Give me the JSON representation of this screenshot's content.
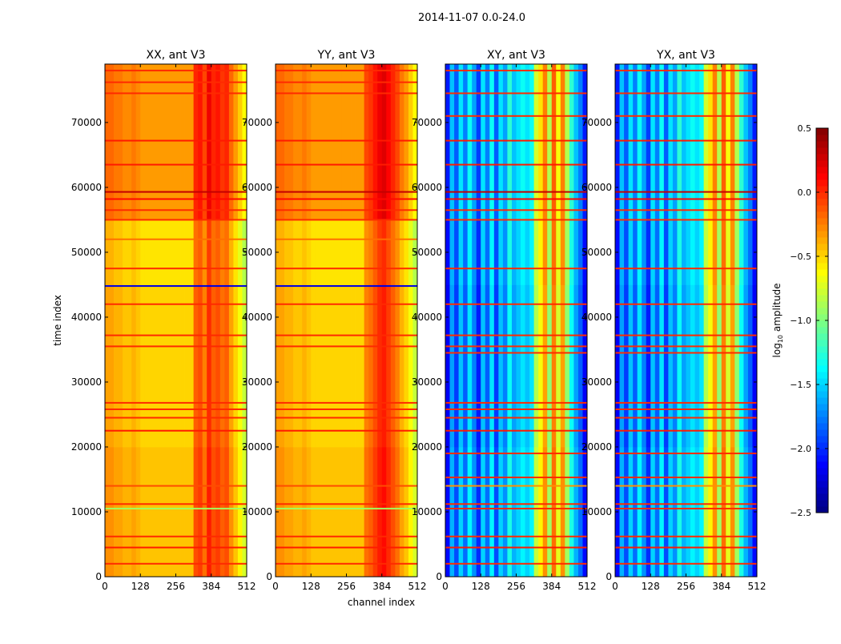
{
  "chart_data": {
    "type": "heatmap",
    "title": "2014-11-07 0.0-24.0",
    "xlabel": "channel index",
    "ylabel": "time index",
    "xlim": [
      0,
      512
    ],
    "ylim": [
      0,
      79000
    ],
    "xticks": [
      "0",
      "128",
      "256",
      "384",
      "512"
    ],
    "yticks": [
      "0",
      "10000",
      "20000",
      "30000",
      "40000",
      "50000",
      "60000",
      "70000"
    ],
    "ytick_values": [
      0,
      10000,
      20000,
      30000,
      40000,
      50000,
      60000,
      70000
    ],
    "colormap": "jet",
    "colorbar": {
      "label_main": "log",
      "label_sub": "10",
      "label_rest": " amplitude",
      "range": [
        -2.5,
        0.5
      ],
      "ticks": [
        "0.5",
        "0.0",
        "−0.5",
        "−1.0",
        "−1.5",
        "−2.0",
        "−2.5"
      ],
      "tick_values": [
        0.5,
        0.0,
        -0.5,
        -1.0,
        -1.5,
        -2.0,
        -2.5
      ]
    },
    "panels": [
      {
        "title": "XX, ant V3",
        "channel_profile": [
          -0.3,
          -0.3,
          -0.35,
          -0.35,
          -0.4,
          -0.4,
          -0.35,
          -0.4,
          -0.45,
          -0.45,
          -0.45,
          -0.45,
          -0.45,
          -0.45,
          -0.45,
          -0.45,
          -0.45,
          -0.45,
          -0.45,
          -0.45,
          -0.1,
          -0.05,
          -0.2,
          0.05,
          -0.1,
          -0.05,
          -0.15,
          -0.1,
          -0.3,
          -0.45,
          -0.6,
          -0.75
        ],
        "time_bands": [
          {
            "from": 0,
            "to": 20000,
            "offset": 0.0
          },
          {
            "from": 20000,
            "to": 45000,
            "offset": -0.05
          },
          {
            "from": 45000,
            "to": 55000,
            "offset": -0.1
          },
          {
            "from": 55000,
            "to": 79000,
            "offset": 0.12
          }
        ],
        "stripes": [
          {
            "t": 2000,
            "v": 0.0
          },
          {
            "t": 4500,
            "v": 0.05
          },
          {
            "t": 6200,
            "v": 0.0
          },
          {
            "t": 10500,
            "v": -0.9
          },
          {
            "t": 11200,
            "v": 0.0
          },
          {
            "t": 14000,
            "v": -0.1
          },
          {
            "t": 22500,
            "v": 0.05
          },
          {
            "t": 24500,
            "v": 0.0
          },
          {
            "t": 25800,
            "v": 0.0
          },
          {
            "t": 26800,
            "v": 0.0
          },
          {
            "t": 35500,
            "v": 0.0
          },
          {
            "t": 37200,
            "v": 0.0
          },
          {
            "t": 42000,
            "v": 0.0
          },
          {
            "t": 44800,
            "v": -2.2
          },
          {
            "t": 47500,
            "v": 0.0
          },
          {
            "t": 52000,
            "v": -0.2
          },
          {
            "t": 55000,
            "v": 0.0
          },
          {
            "t": 56500,
            "v": 0.0
          },
          {
            "t": 58200,
            "v": 0.1
          },
          {
            "t": 59300,
            "v": 0.3
          },
          {
            "t": 63500,
            "v": 0.05
          },
          {
            "t": 67200,
            "v": 0.05
          },
          {
            "t": 74500,
            "v": 0.0
          },
          {
            "t": 76200,
            "v": 0.0
          },
          {
            "t": 78000,
            "v": 0.0
          }
        ]
      },
      {
        "title": "YY, ant V3",
        "channel_profile": [
          -0.3,
          -0.3,
          -0.35,
          -0.35,
          -0.4,
          -0.4,
          -0.35,
          -0.4,
          -0.45,
          -0.45,
          -0.45,
          -0.45,
          -0.45,
          -0.45,
          -0.45,
          -0.45,
          -0.45,
          -0.45,
          -0.45,
          -0.45,
          -0.2,
          -0.15,
          -0.05,
          0.05,
          0.1,
          0.0,
          -0.1,
          -0.2,
          -0.35,
          -0.45,
          -0.6,
          -0.75
        ],
        "time_bands": [
          {
            "from": 0,
            "to": 20000,
            "offset": 0.0
          },
          {
            "from": 20000,
            "to": 45000,
            "offset": -0.05
          },
          {
            "from": 45000,
            "to": 55000,
            "offset": -0.1
          },
          {
            "from": 55000,
            "to": 79000,
            "offset": 0.12
          }
        ],
        "stripes": [
          {
            "t": 2000,
            "v": 0.0
          },
          {
            "t": 4500,
            "v": 0.05
          },
          {
            "t": 6200,
            "v": 0.0
          },
          {
            "t": 10500,
            "v": -0.9
          },
          {
            "t": 11200,
            "v": 0.0
          },
          {
            "t": 14000,
            "v": -0.1
          },
          {
            "t": 22500,
            "v": 0.05
          },
          {
            "t": 24500,
            "v": 0.0
          },
          {
            "t": 25800,
            "v": 0.0
          },
          {
            "t": 26800,
            "v": 0.0
          },
          {
            "t": 35500,
            "v": 0.0
          },
          {
            "t": 37200,
            "v": 0.0
          },
          {
            "t": 42000,
            "v": 0.0
          },
          {
            "t": 44800,
            "v": -2.2
          },
          {
            "t": 47500,
            "v": 0.0
          },
          {
            "t": 52000,
            "v": -0.2
          },
          {
            "t": 55000,
            "v": 0.0
          },
          {
            "t": 56500,
            "v": 0.0
          },
          {
            "t": 58200,
            "v": 0.1
          },
          {
            "t": 59300,
            "v": 0.3
          },
          {
            "t": 63500,
            "v": 0.05
          },
          {
            "t": 67200,
            "v": 0.05
          },
          {
            "t": 74500,
            "v": 0.0
          },
          {
            "t": 76200,
            "v": 0.0
          },
          {
            "t": 78000,
            "v": 0.0
          }
        ]
      },
      {
        "title": "XY, ant V3",
        "channel_profile": [
          -2.1,
          -1.6,
          -1.9,
          -1.5,
          -1.8,
          -1.4,
          -1.7,
          -2.0,
          -1.5,
          -1.8,
          -1.4,
          -1.9,
          -1.5,
          -1.7,
          -1.3,
          -1.6,
          -1.5,
          -1.4,
          -1.5,
          -1.4,
          -0.8,
          -0.6,
          -0.3,
          -0.9,
          -0.2,
          -0.7,
          -0.3,
          -0.9,
          -1.3,
          -1.6,
          -1.8,
          -2.1
        ],
        "time_bands": [
          {
            "from": 0,
            "to": 20000,
            "offset": 0.0
          },
          {
            "from": 20000,
            "to": 45000,
            "offset": -0.05
          },
          {
            "from": 45000,
            "to": 55000,
            "offset": 0.0
          },
          {
            "from": 55000,
            "to": 79000,
            "offset": 0.05
          }
        ],
        "stripes": [
          {
            "t": 2000,
            "v": 0.0
          },
          {
            "t": 4500,
            "v": 0.05
          },
          {
            "t": 6200,
            "v": 0.0
          },
          {
            "t": 10500,
            "v": 0.0
          },
          {
            "t": 11200,
            "v": 0.0
          },
          {
            "t": 14000,
            "v": -0.3
          },
          {
            "t": 15300,
            "v": 0.0
          },
          {
            "t": 19000,
            "v": 0.0
          },
          {
            "t": 22500,
            "v": 0.05
          },
          {
            "t": 24500,
            "v": 0.0
          },
          {
            "t": 25800,
            "v": 0.0
          },
          {
            "t": 26800,
            "v": 0.0
          },
          {
            "t": 34500,
            "v": 0.0
          },
          {
            "t": 35500,
            "v": 0.0
          },
          {
            "t": 37200,
            "v": 0.0
          },
          {
            "t": 42000,
            "v": 0.0
          },
          {
            "t": 47500,
            "v": 0.0
          },
          {
            "t": 55000,
            "v": 0.0
          },
          {
            "t": 56500,
            "v": 0.0
          },
          {
            "t": 58200,
            "v": 0.1
          },
          {
            "t": 59300,
            "v": 0.3
          },
          {
            "t": 63500,
            "v": 0.05
          },
          {
            "t": 67200,
            "v": 0.05
          },
          {
            "t": 71000,
            "v": 0.0
          },
          {
            "t": 74500,
            "v": 0.0
          },
          {
            "t": 78000,
            "v": 0.0
          }
        ]
      },
      {
        "title": "YX, ant V3",
        "channel_profile": [
          -2.1,
          -1.6,
          -1.9,
          -1.5,
          -1.8,
          -1.4,
          -1.7,
          -2.0,
          -1.5,
          -1.8,
          -1.4,
          -1.9,
          -1.5,
          -1.7,
          -1.3,
          -1.6,
          -1.5,
          -1.4,
          -1.5,
          -1.4,
          -0.8,
          -0.6,
          -0.3,
          -0.9,
          -0.2,
          -0.7,
          -0.3,
          -0.9,
          -1.3,
          -1.6,
          -1.8,
          -2.1
        ],
        "time_bands": [
          {
            "from": 0,
            "to": 20000,
            "offset": 0.0
          },
          {
            "from": 20000,
            "to": 45000,
            "offset": -0.05
          },
          {
            "from": 45000,
            "to": 55000,
            "offset": 0.0
          },
          {
            "from": 55000,
            "to": 79000,
            "offset": 0.05
          }
        ],
        "stripes": [
          {
            "t": 2000,
            "v": 0.0
          },
          {
            "t": 4500,
            "v": 0.05
          },
          {
            "t": 6200,
            "v": 0.0
          },
          {
            "t": 10500,
            "v": 0.0
          },
          {
            "t": 11200,
            "v": 0.0
          },
          {
            "t": 14000,
            "v": -0.3
          },
          {
            "t": 15300,
            "v": 0.0
          },
          {
            "t": 19000,
            "v": 0.0
          },
          {
            "t": 22500,
            "v": 0.05
          },
          {
            "t": 24500,
            "v": 0.0
          },
          {
            "t": 25800,
            "v": 0.0
          },
          {
            "t": 26800,
            "v": 0.0
          },
          {
            "t": 34500,
            "v": 0.0
          },
          {
            "t": 35500,
            "v": 0.0
          },
          {
            "t": 37200,
            "v": 0.0
          },
          {
            "t": 42000,
            "v": 0.0
          },
          {
            "t": 47500,
            "v": 0.0
          },
          {
            "t": 55000,
            "v": 0.0
          },
          {
            "t": 56500,
            "v": 0.0
          },
          {
            "t": 58200,
            "v": 0.1
          },
          {
            "t": 59300,
            "v": 0.3
          },
          {
            "t": 63500,
            "v": 0.05
          },
          {
            "t": 67200,
            "v": 0.05
          },
          {
            "t": 71000,
            "v": 0.0
          },
          {
            "t": 74500,
            "v": 0.0
          },
          {
            "t": 78000,
            "v": 0.0
          }
        ]
      }
    ]
  }
}
